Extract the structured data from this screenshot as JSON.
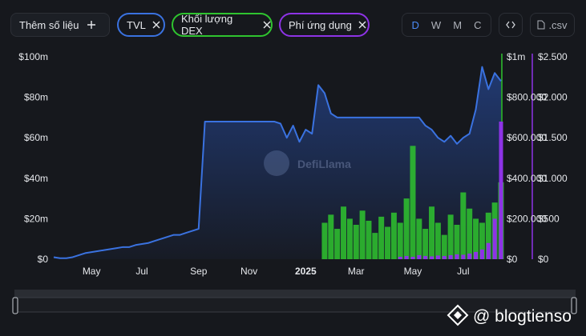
{
  "toolbar": {
    "add_metric": "Thêm số liệu",
    "intervals": [
      "D",
      "W",
      "M",
      "C"
    ],
    "csv": ".csv"
  },
  "watermark": "DefiLlama",
  "credit": "@ blogtienso",
  "chart_data": {
    "type": "line_bar",
    "categories": [
      null,
      null,
      null,
      null,
      null,
      null,
      "May",
      null,
      null,
      null,
      null,
      null,
      null,
      null,
      "Jul",
      null,
      null,
      null,
      null,
      null,
      null,
      null,
      null,
      "Sep",
      null,
      null,
      null,
      null,
      null,
      null,
      null,
      "Nov",
      null,
      null,
      null,
      null,
      null,
      null,
      null,
      null,
      "2025",
      null,
      null,
      null,
      null,
      null,
      null,
      null,
      "Mar",
      null,
      null,
      null,
      null,
      null,
      null,
      null,
      null,
      "May",
      null,
      null,
      null,
      null,
      null,
      null,
      null,
      "Jul",
      null,
      null,
      null,
      null,
      null,
      null
    ],
    "series": [
      {
        "name": "TVL",
        "color": "#3a72e0",
        "mark": "line",
        "axis": "y",
        "values": [
          1,
          0.5,
          0.5,
          1,
          2,
          3,
          3.5,
          4,
          4.5,
          5,
          5.5,
          6,
          6,
          7,
          7.5,
          8,
          9,
          10,
          11,
          12,
          12,
          13,
          14,
          15,
          68,
          68,
          68,
          68,
          68,
          68,
          68,
          68,
          68,
          68,
          68,
          68,
          67,
          60,
          66,
          58,
          64,
          62,
          86,
          82,
          72,
          70,
          70,
          70,
          70,
          70,
          70,
          70,
          70,
          70,
          70,
          70,
          70,
          70,
          70,
          66,
          64,
          60,
          58,
          61,
          57,
          60,
          62,
          74,
          95,
          84,
          92,
          88
        ]
      },
      {
        "name": "Khối lượng DEX",
        "color": "#2fc42f",
        "mark": "bar",
        "axis": "y2",
        "values": [
          null,
          null,
          null,
          null,
          null,
          null,
          null,
          null,
          null,
          null,
          null,
          null,
          null,
          null,
          null,
          null,
          null,
          null,
          null,
          null,
          null,
          null,
          null,
          null,
          null,
          null,
          null,
          null,
          null,
          null,
          null,
          null,
          null,
          null,
          null,
          null,
          null,
          null,
          null,
          null,
          null,
          null,
          null,
          180000,
          220000,
          150000,
          260000,
          200000,
          170000,
          240000,
          190000,
          130000,
          210000,
          160000,
          230000,
          180000,
          300000,
          560000,
          200000,
          150000,
          260000,
          180000,
          120000,
          220000,
          170000,
          330000,
          250000,
          200000,
          180000,
          230000,
          280000,
          380000
        ]
      },
      {
        "name": "Phí ứng dụng",
        "color": "#8e33e6",
        "mark": "bar",
        "axis": "y3",
        "values": [
          null,
          null,
          null,
          null,
          null,
          null,
          null,
          null,
          null,
          null,
          null,
          null,
          null,
          null,
          null,
          null,
          null,
          null,
          null,
          null,
          null,
          null,
          null,
          null,
          null,
          null,
          null,
          null,
          null,
          null,
          null,
          null,
          null,
          null,
          null,
          null,
          null,
          null,
          null,
          null,
          null,
          null,
          null,
          null,
          null,
          null,
          null,
          null,
          null,
          null,
          null,
          null,
          null,
          null,
          null,
          30,
          40,
          30,
          50,
          40,
          35,
          45,
          40,
          50,
          60,
          55,
          70,
          90,
          120,
          200,
          500,
          1700
        ]
      }
    ],
    "ylim": [
      0,
      100
    ],
    "yticks": [
      {
        "value": 0,
        "label": "$0"
      },
      {
        "value": 20,
        "label": "$20m"
      },
      {
        "value": 40,
        "label": "$40m"
      },
      {
        "value": 60,
        "label": "$60m"
      },
      {
        "value": 80,
        "label": "$80m"
      },
      {
        "value": 100,
        "label": "$100m"
      }
    ],
    "y2lim": [
      0,
      1000000
    ],
    "y2ticks": [
      {
        "value": 0,
        "label": "$0"
      },
      {
        "value": 200000,
        "label": "$200.000"
      },
      {
        "value": 400000,
        "label": "$400.000"
      },
      {
        "value": 600000,
        "label": "$600.000"
      },
      {
        "value": 800000,
        "label": "$800.000"
      },
      {
        "value": 1000000,
        "label": "$1m"
      }
    ],
    "y3lim": [
      0,
      2500
    ],
    "y3ticks": [
      {
        "value": 0,
        "label": "$0"
      },
      {
        "value": 500,
        "label": "$500"
      },
      {
        "value": 1000,
        "label": "$1.000"
      },
      {
        "value": 1500,
        "label": "$1.500"
      },
      {
        "value": 2000,
        "label": "$2.000"
      },
      {
        "value": 2500,
        "label": "$2.500"
      }
    ],
    "grid": false
  }
}
